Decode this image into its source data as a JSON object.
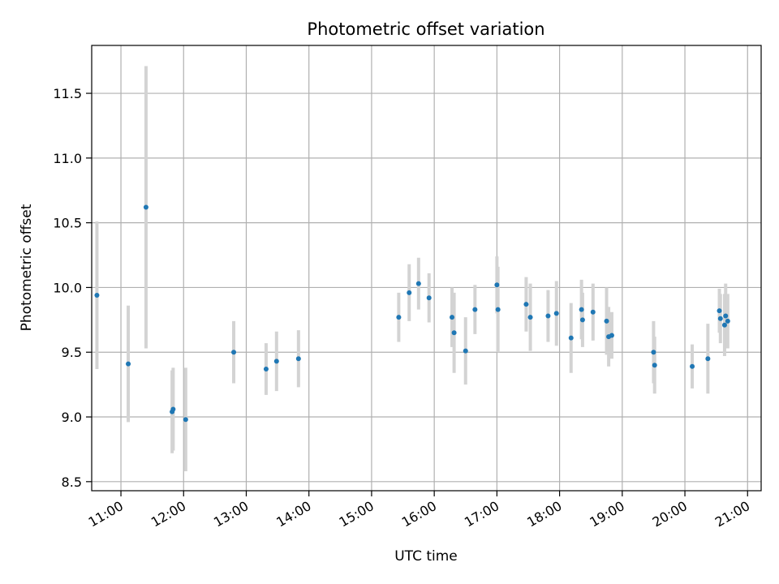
{
  "chart_data": {
    "type": "scatter",
    "title": "Photometric offset variation",
    "xlabel": "UTC time",
    "ylabel": "Photometric offset",
    "grid": true,
    "xlim": [
      "10:32",
      "21:13"
    ],
    "ylim": [
      8.43,
      11.87
    ],
    "xticks": [
      "11:00",
      "12:00",
      "13:00",
      "14:00",
      "15:00",
      "16:00",
      "17:00",
      "18:00",
      "19:00",
      "20:00",
      "21:00"
    ],
    "yticks": [
      8.5,
      9.0,
      9.5,
      10.0,
      10.5,
      11.0,
      11.5
    ],
    "colors": {
      "points": "#1f77b4",
      "error_bars": "#d3d3d3",
      "grid": "#b0b0b0"
    },
    "series": [
      {
        "points": [
          {
            "x": "10:37",
            "y": 9.94,
            "err": 0.57
          },
          {
            "x": "11:07",
            "y": 9.41,
            "err": 0.45
          },
          {
            "x": "11:24",
            "y": 10.62,
            "err": 1.09
          },
          {
            "x": "11:49",
            "y": 9.04,
            "err": 0.32
          },
          {
            "x": "11:50",
            "y": 9.06,
            "err": 0.32
          },
          {
            "x": "12:02",
            "y": 8.98,
            "err": 0.4
          },
          {
            "x": "12:48",
            "y": 9.5,
            "err": 0.24
          },
          {
            "x": "13:19",
            "y": 9.37,
            "err": 0.2
          },
          {
            "x": "13:29",
            "y": 9.43,
            "err": 0.23
          },
          {
            "x": "13:50",
            "y": 9.45,
            "err": 0.22
          },
          {
            "x": "15:26",
            "y": 9.77,
            "err": 0.19
          },
          {
            "x": "15:36",
            "y": 9.96,
            "err": 0.22
          },
          {
            "x": "15:45",
            "y": 10.03,
            "err": 0.2
          },
          {
            "x": "15:55",
            "y": 9.92,
            "err": 0.19
          },
          {
            "x": "16:17",
            "y": 9.77,
            "err": 0.23
          },
          {
            "x": "16:19",
            "y": 9.65,
            "err": 0.31
          },
          {
            "x": "16:30",
            "y": 9.51,
            "err": 0.26
          },
          {
            "x": "16:39",
            "y": 9.83,
            "err": 0.19
          },
          {
            "x": "17:00",
            "y": 10.02,
            "err": 0.22
          },
          {
            "x": "17:01",
            "y": 9.83,
            "err": 0.33
          },
          {
            "x": "17:28",
            "y": 9.87,
            "err": 0.21
          },
          {
            "x": "17:32",
            "y": 9.77,
            "err": 0.26
          },
          {
            "x": "17:49",
            "y": 9.78,
            "err": 0.2
          },
          {
            "x": "17:57",
            "y": 9.8,
            "err": 0.25
          },
          {
            "x": "18:11",
            "y": 9.61,
            "err": 0.27
          },
          {
            "x": "18:21",
            "y": 9.83,
            "err": 0.23
          },
          {
            "x": "18:22",
            "y": 9.75,
            "err": 0.21
          },
          {
            "x": "18:32",
            "y": 9.81,
            "err": 0.22
          },
          {
            "x": "18:45",
            "y": 9.74,
            "err": 0.26
          },
          {
            "x": "18:47",
            "y": 9.62,
            "err": 0.23
          },
          {
            "x": "18:50",
            "y": 9.63,
            "err": 0.18
          },
          {
            "x": "19:30",
            "y": 9.5,
            "err": 0.24
          },
          {
            "x": "19:31",
            "y": 9.4,
            "err": 0.22
          },
          {
            "x": "20:07",
            "y": 9.39,
            "err": 0.17
          },
          {
            "x": "20:22",
            "y": 9.45,
            "err": 0.27
          },
          {
            "x": "20:33",
            "y": 9.82,
            "err": 0.17
          },
          {
            "x": "20:34",
            "y": 9.76,
            "err": 0.19
          },
          {
            "x": "20:38",
            "y": 9.71,
            "err": 0.24
          },
          {
            "x": "20:39",
            "y": 9.78,
            "err": 0.25
          },
          {
            "x": "20:41",
            "y": 9.74,
            "err": 0.21
          }
        ]
      }
    ]
  }
}
